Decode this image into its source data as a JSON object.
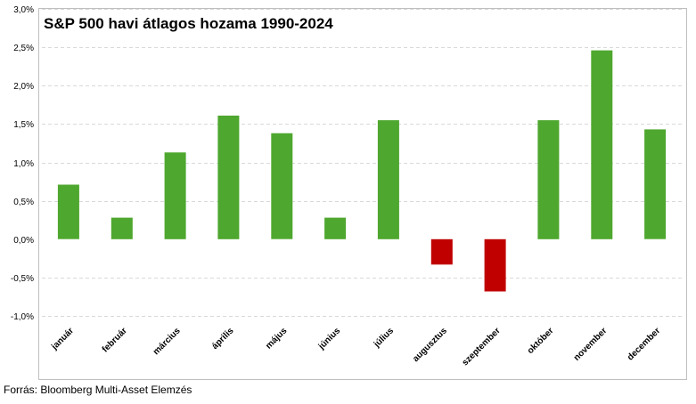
{
  "chart_data": {
    "type": "bar",
    "title": "S&P 500 havi átlagos hozama 1990-2024",
    "xlabel": "",
    "ylabel": "",
    "categories": [
      "január",
      "február",
      "március",
      "április",
      "május",
      "június",
      "július",
      "augusztus",
      "szeptember",
      "október",
      "november",
      "december"
    ],
    "values": [
      0.71,
      0.28,
      1.13,
      1.61,
      1.38,
      0.28,
      1.55,
      -0.33,
      -0.68,
      1.55,
      2.46,
      1.43
    ],
    "ylim": [
      -1.0,
      3.0
    ],
    "yticks": [
      3.0,
      2.5,
      2.0,
      1.5,
      1.0,
      0.5,
      0.0,
      -0.5,
      -1.0
    ],
    "ytick_labels": [
      "3,0%",
      "2,5%",
      "2,0%",
      "1,5%",
      "1,0%",
      "0,5%",
      "0,0%",
      "-0,5%",
      "-1,0%"
    ],
    "grid": true,
    "positive_color": "#4ea72e",
    "negative_color": "#c00000",
    "grid_color": "#d9d9d9"
  },
  "source": "Forrás: Bloomberg Multi-Asset Elemzés"
}
